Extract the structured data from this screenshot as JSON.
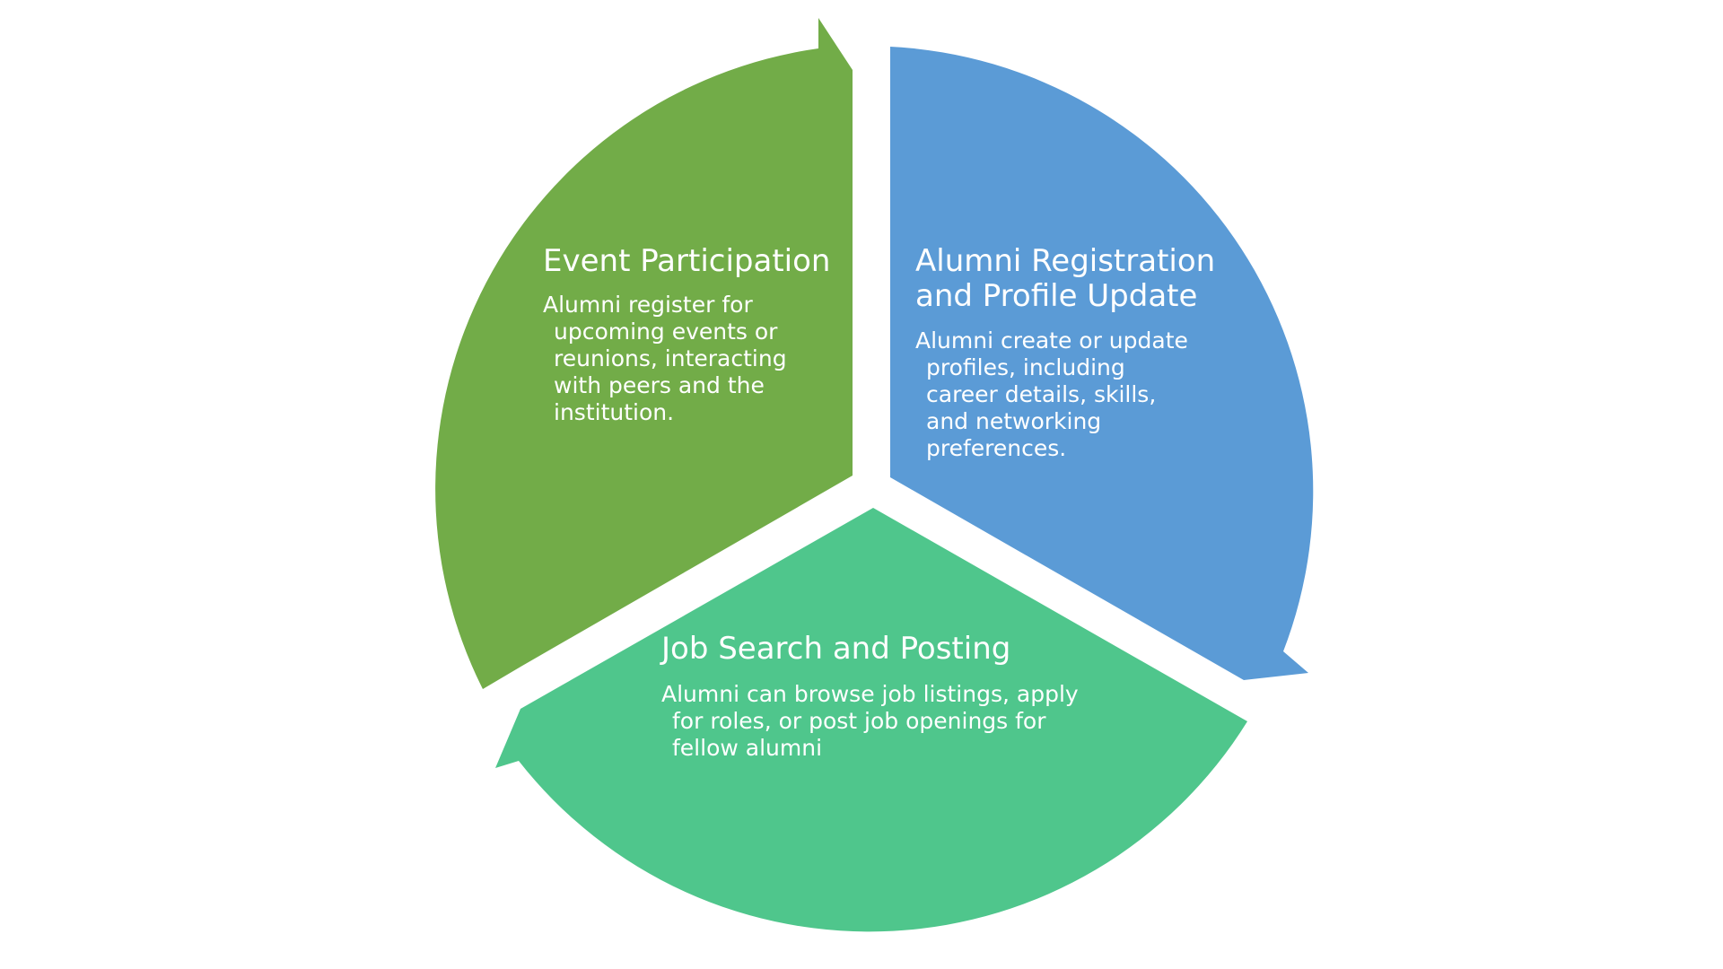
{
  "colors": {
    "background": "#ffffff",
    "segment_green": "#72ac48",
    "segment_blue": "#5b9bd6",
    "segment_teal": "#4fc68c",
    "text": "#ffffff"
  },
  "segments": [
    {
      "key": "registration",
      "title": "Alumni Registration and Profile Update",
      "title_lines": [
        "Alumni Registration",
        "and Profile Update"
      ],
      "body_lines": [
        "Alumni create or update",
        "profiles, including",
        "career details, skills,",
        "and networking",
        "preferences."
      ]
    },
    {
      "key": "job-search",
      "title": "Job Search and Posting",
      "title_lines": [
        "Job Search and Posting"
      ],
      "body_lines": [
        "Alumni can browse job listings, apply",
        "for roles, or post job openings for",
        "fellow alumni"
      ]
    },
    {
      "key": "event",
      "title": "Event Participation",
      "title_lines": [
        "Event Participation"
      ],
      "body_lines": [
        "Alumni register for",
        "upcoming events or",
        "reunions, interacting",
        "with peers and the",
        "institution."
      ]
    }
  ]
}
